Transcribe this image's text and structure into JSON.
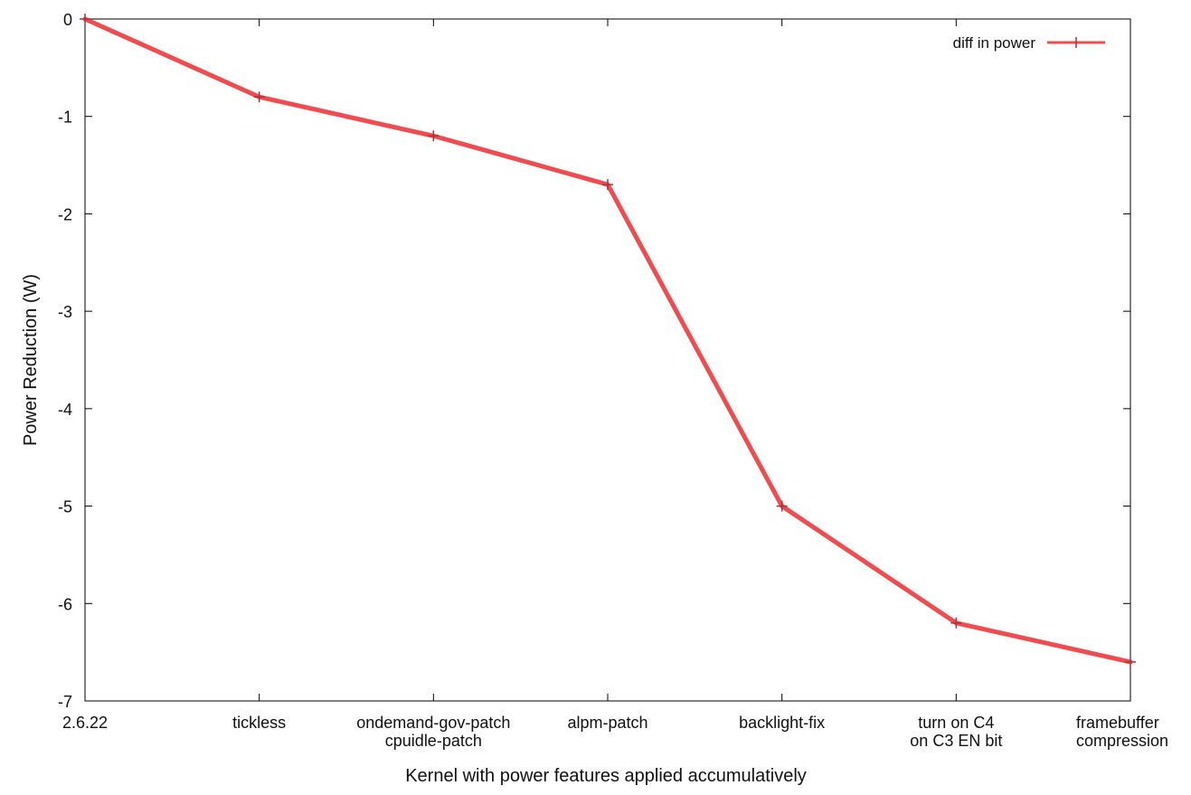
{
  "chart_data": {
    "type": "line",
    "title": "",
    "xlabel": "Kernel with power features applied accumulatively",
    "ylabel": "Power Reduction (W)",
    "categories": [
      [
        "2.6.22"
      ],
      [
        "tickless"
      ],
      [
        "ondemand-gov-patch",
        "cpuidle-patch"
      ],
      [
        "alpm-patch"
      ],
      [
        "backlight-fix"
      ],
      [
        "turn on C4",
        "on C3 EN bit"
      ],
      [
        "framebuffer",
        "compression"
      ]
    ],
    "series": [
      {
        "name": "diff in power",
        "values": [
          0,
          -0.8,
          -1.2,
          -1.7,
          -5.0,
          -6.2,
          -6.6
        ],
        "color": "#f24b4f"
      }
    ],
    "yticks": [
      "0",
      "-1",
      "-2",
      "-3",
      "-4",
      "-5",
      "-6",
      "-7"
    ],
    "ylim": [
      -7,
      0
    ],
    "grid": false,
    "legend_position": "top-right"
  }
}
